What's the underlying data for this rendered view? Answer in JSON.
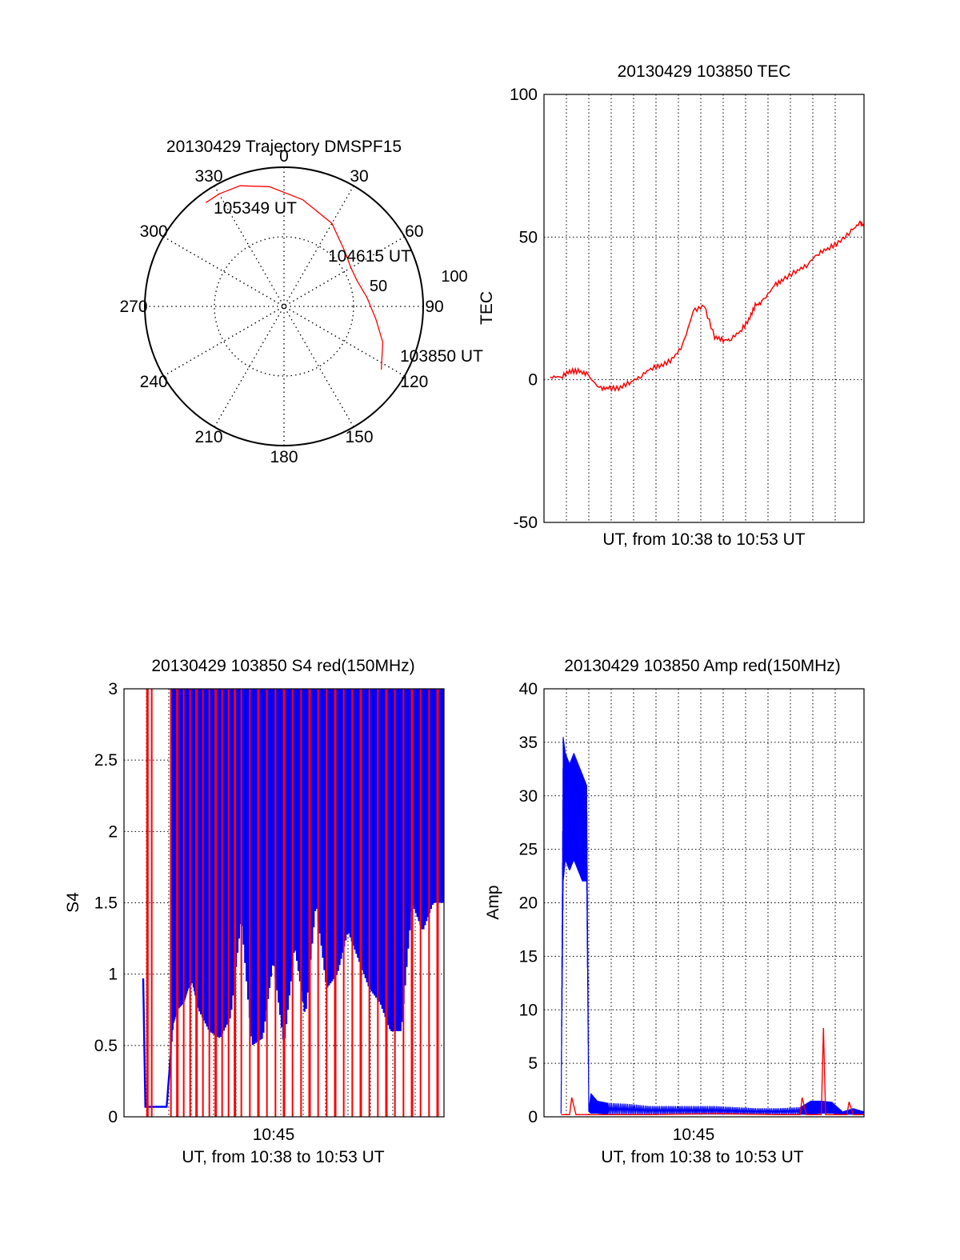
{
  "chart_data": [
    {
      "type": "polar",
      "title": "20130429 Trajectory DMSPF15",
      "azimuth_labels": [
        "0",
        "30",
        "60",
        "90",
        "120",
        "150",
        "180",
        "210",
        "240",
        "270",
        "300",
        "330"
      ],
      "azimuths": [
        0,
        30,
        60,
        90,
        120,
        150,
        180,
        210,
        240,
        270,
        300,
        330
      ],
      "radial_labels": [
        "100",
        "50"
      ],
      "trajectory": {
        "color": "#ff0000",
        "points": [
          {
            "az": 123,
            "el": 15
          },
          {
            "az": 110,
            "el": 22
          },
          {
            "az": 98,
            "el": 30
          },
          {
            "az": 84,
            "el": 36
          },
          {
            "az": 70,
            "el": 40
          },
          {
            "az": 60,
            "el": 40
          },
          {
            "az": 48,
            "el": 37
          },
          {
            "az": 30,
            "el": 28
          },
          {
            "az": 10,
            "el": 20
          },
          {
            "az": -7,
            "el": 12
          },
          {
            "az": -20,
            "el": 7
          },
          {
            "az": -30,
            "el": 6
          },
          {
            "az": -37,
            "el": 6
          }
        ],
        "annotations": [
          {
            "text": "103850 UT",
            "az": 123,
            "el": 15
          },
          {
            "text": "104615 UT",
            "az": 60,
            "el": 40
          },
          {
            "text": "105349 UT",
            "az": -30,
            "el": 6
          }
        ]
      }
    },
    {
      "type": "line",
      "title": "20130429 103850 TEC",
      "xlabel": "UT, from 10:38 to 10:53 UT",
      "ylabel": "TEC",
      "xlim": [
        0,
        15
      ],
      "ylim": [
        -50,
        100
      ],
      "yticks": [
        "-50",
        "0",
        "50",
        "100"
      ],
      "grid": true,
      "series": [
        {
          "color": "#ff0000",
          "x": [
            0.3,
            0.8,
            1.2,
            1.6,
            2.0,
            2.6,
            3.0,
            3.5,
            4.0,
            4.5,
            5.0,
            5.5,
            6.0,
            6.5,
            7.0,
            7.5,
            8.0,
            8.4,
            8.7,
            9.2,
            9.6,
            9.9,
            10.2,
            10.8,
            11.2,
            11.8,
            12.3,
            12.8,
            13.3,
            13.8,
            14.4,
            14.8,
            15.0
          ],
          "y": [
            1,
            1,
            3,
            3,
            2,
            -3,
            -3,
            -3,
            -1,
            1,
            4,
            5,
            7,
            12,
            24,
            26,
            15,
            14,
            14,
            17,
            21,
            26,
            27,
            33,
            35,
            38,
            40,
            44,
            46,
            48,
            52,
            55,
            54
          ]
        }
      ]
    },
    {
      "type": "line",
      "title": "20130429 103850 S4 red(150MHz)",
      "xlabel": "UT, from 10:38 to 10:53 UT",
      "ylabel": "S4",
      "xtick_labels": [
        "10:45"
      ],
      "xticks": [
        7
      ],
      "xlim": [
        0,
        15
      ],
      "ylim": [
        0,
        3
      ],
      "yticks": [
        "0",
        "0.5",
        "1",
        "1.5",
        "2",
        "2.5",
        "3"
      ],
      "grid": true,
      "series": [
        {
          "color": "#ff0000",
          "note": "spikes",
          "x": [
            1.1,
            1.3,
            2.2,
            2.5,
            2.8,
            3.1,
            3.4,
            3.7,
            4.0,
            4.3,
            4.6,
            4.9,
            5.2,
            5.5,
            5.9,
            6.3,
            6.7,
            7.1,
            7.5,
            7.9,
            8.3,
            8.7,
            9.1,
            9.5,
            9.9,
            10.3,
            10.7,
            11.1,
            11.5,
            11.9,
            12.3,
            12.7,
            13.1,
            13.5,
            13.9,
            14.3,
            14.7
          ]
        },
        {
          "color": "#0000ff",
          "x": [
            0.9,
            1.0,
            1.5,
            2.0,
            2.3,
            2.5,
            2.8,
            3.0,
            3.2,
            3.5,
            4.0,
            4.5,
            5.0,
            5.5,
            6.0,
            6.5,
            7.0,
            7.5,
            8.0,
            8.5,
            9.0,
            9.5,
            10.0,
            10.5,
            11.0,
            11.5,
            12.0,
            12.5,
            13.0,
            13.5,
            14.0,
            14.5,
            15.0
          ],
          "y": [
            0.97,
            0.07,
            0.07,
            0.07,
            0.65,
            0.75,
            0.8,
            0.9,
            0.95,
            0.75,
            0.6,
            0.55,
            0.7,
            1.4,
            0.5,
            0.55,
            1.1,
            0.5,
            1.2,
            0.7,
            1.5,
            0.9,
            1.0,
            1.3,
            1.1,
            0.9,
            0.8,
            0.6,
            0.6,
            1.5,
            1.3,
            1.5,
            1.5
          ]
        }
      ]
    },
    {
      "type": "line",
      "title": "20130429 103850 Amp red(150MHz)",
      "xlabel": "UT, from 10:38 to 10:53 UT",
      "ylabel": "Amp",
      "xtick_labels": [
        "10:45"
      ],
      "xticks": [
        7
      ],
      "xlim": [
        0,
        15
      ],
      "ylim": [
        0,
        40
      ],
      "yticks": [
        "0",
        "5",
        "10",
        "15",
        "20",
        "25",
        "30",
        "35",
        "40"
      ],
      "grid": true,
      "series": [
        {
          "color": "#0000ff",
          "x": [
            0.8,
            0.9,
            1.0,
            1.2,
            1.4,
            1.6,
            1.8,
            2.0,
            2.1,
            2.2,
            2.5,
            3.0,
            4.0,
            5.0,
            6.0,
            7.0,
            8.0,
            9.0,
            10.0,
            11.0,
            12.0,
            12.5,
            13.0,
            13.5,
            14.0,
            14.5,
            15.0
          ],
          "y": [
            0.3,
            27,
            30,
            29,
            28,
            28,
            27,
            26,
            0.5,
            1.2,
            1.0,
            0.8,
            0.5,
            0.5,
            0.6,
            0.5,
            0.5,
            0.4,
            0.4,
            0.5,
            0.5,
            0.5,
            1.0,
            0.8,
            0.3,
            0.4,
            0.3
          ],
          "max_y": [
            0.3,
            35.5,
            34,
            33,
            34,
            33,
            32,
            31,
            0.5,
            2.2,
            1.5,
            1.3,
            1.2,
            1.0,
            1.0,
            1.0,
            1.0,
            0.9,
            0.8,
            0.8,
            0.9,
            1.5,
            1.5,
            1.4,
            0.5,
            0.8,
            0.5
          ],
          "min_y": [
            0.3,
            22,
            24,
            23,
            24,
            23,
            22,
            22,
            0.5,
            0.3,
            0.3,
            0.2,
            0.2,
            0.2,
            0.2,
            0.2,
            0.2,
            0.2,
            0.2,
            0.2,
            0.2,
            0.2,
            0.3,
            0.3,
            0.2,
            0.2,
            0.2
          ]
        },
        {
          "color": "#ff0000",
          "x": [
            0.8,
            1.2,
            1.3,
            1.5,
            3.0,
            5.0,
            8.0,
            11.0,
            12.0,
            12.1,
            12.3,
            13.0,
            13.1,
            13.2,
            14.2,
            14.3,
            14.5,
            15.0
          ],
          "y": [
            0.2,
            0.2,
            1.8,
            0.2,
            0.2,
            0.2,
            0.3,
            0.2,
            0.2,
            1.8,
            0.2,
            0.2,
            8.3,
            0.2,
            0.2,
            1.4,
            0.2,
            0.2
          ]
        }
      ]
    }
  ]
}
